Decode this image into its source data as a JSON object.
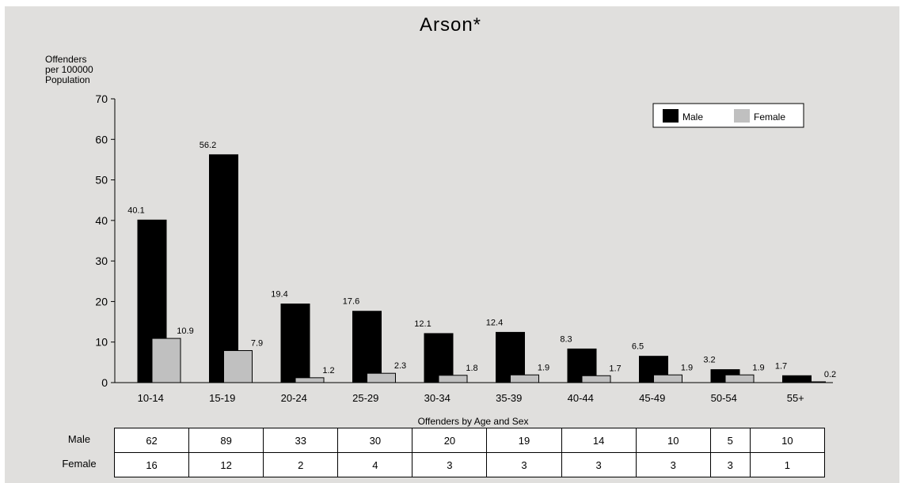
{
  "chart_data": {
    "type": "bar",
    "title": "Arson*",
    "ylabel": [
      "Offenders",
      "per 100000",
      "Population"
    ],
    "xlabel": "Offenders by Age and Sex",
    "ylim": [
      0,
      70
    ],
    "yticks": [
      0,
      10,
      20,
      30,
      40,
      50,
      60,
      70
    ],
    "categories": [
      "10-14",
      "15-19",
      "20-24",
      "25-29",
      "30-34",
      "35-39",
      "40-44",
      "45-49",
      "50-54",
      "55+"
    ],
    "series": [
      {
        "name": "Male",
        "color": "#000000",
        "values": [
          40.1,
          56.2,
          19.4,
          17.6,
          12.1,
          12.4,
          8.3,
          6.5,
          3.2,
          1.7
        ],
        "labels": [
          "40.1",
          "56.2",
          "19.4",
          "17.6",
          "12.1",
          "12.4",
          "8.3",
          "6.5",
          "3.2",
          "1.7"
        ]
      },
      {
        "name": "Female",
        "color": "#c0c0c0",
        "values": [
          10.9,
          7.9,
          1.2,
          2.3,
          1.8,
          1.9,
          1.7,
          1.9,
          1.9,
          0.2
        ],
        "labels": [
          "10.9",
          "7.9",
          "1.2",
          "2.3",
          "1.8",
          "1.9",
          "1.7",
          "1.9",
          "1.9",
          "0.2"
        ]
      }
    ],
    "legend_position": "top-right",
    "grid": false
  },
  "table": {
    "rows": [
      {
        "label": "Male",
        "values": [
          "62",
          "89",
          "33",
          "30",
          "20",
          "19",
          "14",
          "10",
          "5",
          "10"
        ]
      },
      {
        "label": "Female",
        "values": [
          "16",
          "12",
          "2",
          "4",
          "3",
          "3",
          "3",
          "3",
          "3",
          "1"
        ]
      }
    ]
  }
}
